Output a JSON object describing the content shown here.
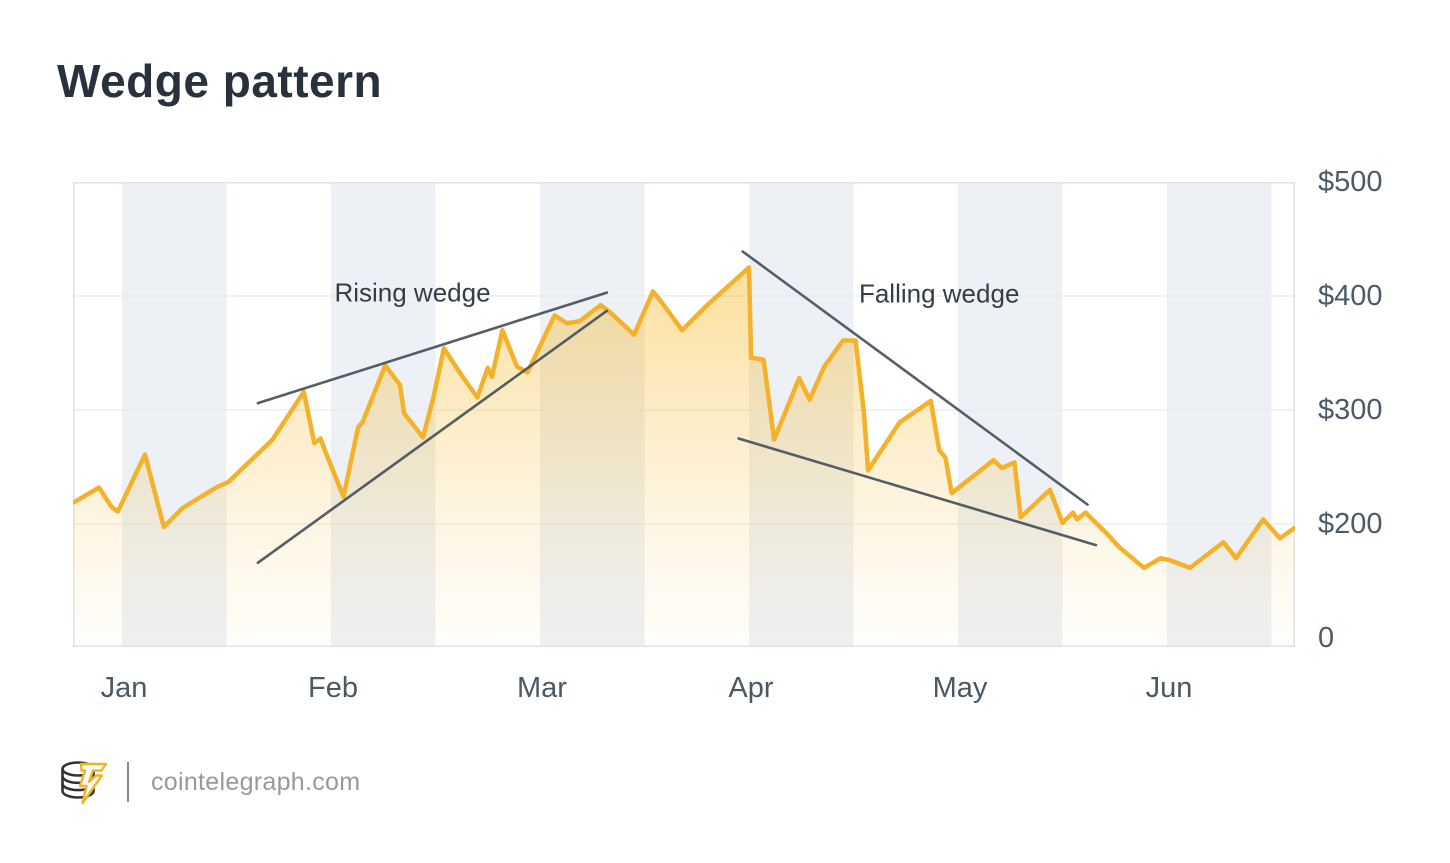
{
  "title": "Wedge pattern",
  "footer": {
    "site_url": "cointelegraph.com",
    "logo": "cointelegraph-coin-stack-lightning-logo"
  },
  "colors": {
    "title_text": "#29323C",
    "axis_text": "#4C5B67",
    "annotation_text": "#333E49",
    "price_line": "#F3B229",
    "area_fill": "#F6B827",
    "trend_line": "#46525D",
    "stripe": "#EDF1F6",
    "gridline": "#E9EBED",
    "chart_border": "#DFE3E7",
    "footer_text": "#97999B",
    "logo_dark": "#2F3337",
    "logo_yellow": "#F0B41E"
  },
  "chart_data": {
    "type": "area",
    "title": "Wedge pattern",
    "x_axis": {
      "labels": [
        "Jan",
        "Feb",
        "Mar",
        "Apr",
        "May",
        "Jun"
      ],
      "unit": "t is months, 0 = Jan tick, 1 = Feb tick",
      "range_t": [
        -0.24,
        5.62
      ],
      "background_stripes": true
    },
    "y_axis": {
      "side": "right",
      "labels": [
        "$500",
        "$400",
        "$300",
        "$200",
        "0"
      ],
      "tick_values": [
        500,
        400,
        300,
        200,
        0
      ],
      "note": "ticks evenly spaced; bottom 200-to-0 span is compressed into one gridline gap",
      "gridlines_at": [
        400,
        300,
        200
      ]
    },
    "series": [
      {
        "name": "price",
        "style": "line-with-gradient-area",
        "points": [
          [
            -0.23,
            219
          ],
          [
            -0.11,
            232
          ],
          [
            -0.05,
            215
          ],
          [
            -0.02,
            211
          ],
          [
            0.11,
            261
          ],
          [
            0.2,
            195
          ],
          [
            0.29,
            214
          ],
          [
            0.45,
            232
          ],
          [
            0.51,
            237
          ],
          [
            0.72,
            274
          ],
          [
            0.87,
            316
          ],
          [
            0.92,
            271
          ],
          [
            0.95,
            275
          ],
          [
            0.97,
            265
          ],
          [
            1.06,
            224
          ],
          [
            1.13,
            285
          ],
          [
            1.15,
            289
          ],
          [
            1.26,
            339
          ],
          [
            1.33,
            322
          ],
          [
            1.35,
            297
          ],
          [
            1.44,
            276
          ],
          [
            1.49,
            311
          ],
          [
            1.54,
            354
          ],
          [
            1.63,
            329
          ],
          [
            1.7,
            311
          ],
          [
            1.75,
            337
          ],
          [
            1.77,
            329
          ],
          [
            1.82,
            370
          ],
          [
            1.89,
            338
          ],
          [
            1.94,
            333
          ],
          [
            2.07,
            383
          ],
          [
            2.13,
            376
          ],
          [
            2.19,
            378
          ],
          [
            2.29,
            392
          ],
          [
            2.34,
            385
          ],
          [
            2.45,
            366
          ],
          [
            2.54,
            404
          ],
          [
            2.58,
            395
          ],
          [
            2.68,
            370
          ],
          [
            2.8,
            392
          ],
          [
            3.0,
            425
          ],
          [
            3.01,
            346
          ],
          [
            3.07,
            344
          ],
          [
            3.12,
            274
          ],
          [
            3.24,
            328
          ],
          [
            3.29,
            309
          ],
          [
            3.36,
            338
          ],
          [
            3.45,
            361
          ],
          [
            3.51,
            361
          ],
          [
            3.55,
            298
          ],
          [
            3.57,
            247
          ],
          [
            3.72,
            289
          ],
          [
            3.87,
            308
          ],
          [
            3.91,
            265
          ],
          [
            3.94,
            258
          ],
          [
            3.97,
            227
          ],
          [
            4.17,
            256
          ],
          [
            4.21,
            249
          ],
          [
            4.27,
            254
          ],
          [
            4.3,
            206
          ],
          [
            4.44,
            230
          ],
          [
            4.5,
            201
          ],
          [
            4.55,
            210
          ],
          [
            4.57,
            204
          ],
          [
            4.61,
            210
          ],
          [
            4.71,
            184
          ],
          [
            4.77,
            160
          ],
          [
            4.89,
            123
          ],
          [
            4.97,
            140
          ],
          [
            5.01,
            137
          ],
          [
            5.11,
            123
          ],
          [
            5.27,
            168
          ],
          [
            5.33,
            140
          ],
          [
            5.46,
            204
          ],
          [
            5.54,
            175
          ],
          [
            5.61,
            193
          ]
        ]
      }
    ],
    "trendlines": [
      {
        "name": "rising-wedge-upper",
        "from": [
          0.65,
          306
        ],
        "to": [
          2.32,
          403
        ]
      },
      {
        "name": "rising-wedge-lower",
        "from": [
          0.65,
          132
        ],
        "to": [
          2.32,
          387
        ]
      },
      {
        "name": "falling-wedge-upper",
        "from": [
          2.97,
          439
        ],
        "to": [
          4.62,
          217
        ]
      },
      {
        "name": "falling-wedge-lower",
        "from": [
          2.95,
          275
        ],
        "to": [
          4.66,
          163
        ]
      }
    ],
    "annotations": [
      {
        "text": "Rising wedge",
        "t": 1.39,
        "value": 403
      },
      {
        "text": "Falling wedge",
        "t": 3.91,
        "value": 402
      }
    ],
    "legend": "none",
    "grid": "horizontal gridlines + alternating vertical month stripes"
  }
}
